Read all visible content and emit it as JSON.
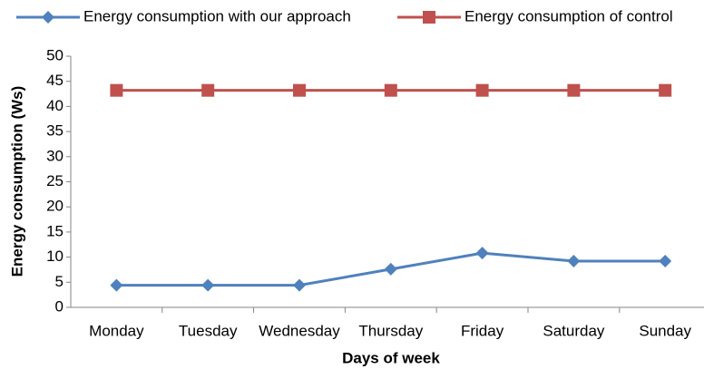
{
  "chart_data": {
    "type": "line",
    "xlabel": "Days of week",
    "ylabel": "Energy  consumption (Ws)",
    "categories": [
      "Monday",
      "Tuesday",
      "Wednesday",
      "Thursday",
      "Friday",
      "Saturday",
      "Sunday"
    ],
    "series": [
      {
        "name": "Energy consumption with our approach",
        "color": "#4f81bd",
        "marker": "diamond",
        "values": [
          4.4,
          4.4,
          4.4,
          7.6,
          10.8,
          9.2,
          9.2
        ]
      },
      {
        "name": "Energy consumption of control",
        "color": "#c0504d",
        "marker": "square",
        "values": [
          43.2,
          43.2,
          43.2,
          43.2,
          43.2,
          43.2,
          43.2
        ]
      }
    ],
    "ylim": [
      0,
      50
    ],
    "yticks": [
      0,
      5,
      10,
      15,
      20,
      25,
      30,
      35,
      40,
      45,
      50
    ],
    "grid": false,
    "legend": "top"
  }
}
